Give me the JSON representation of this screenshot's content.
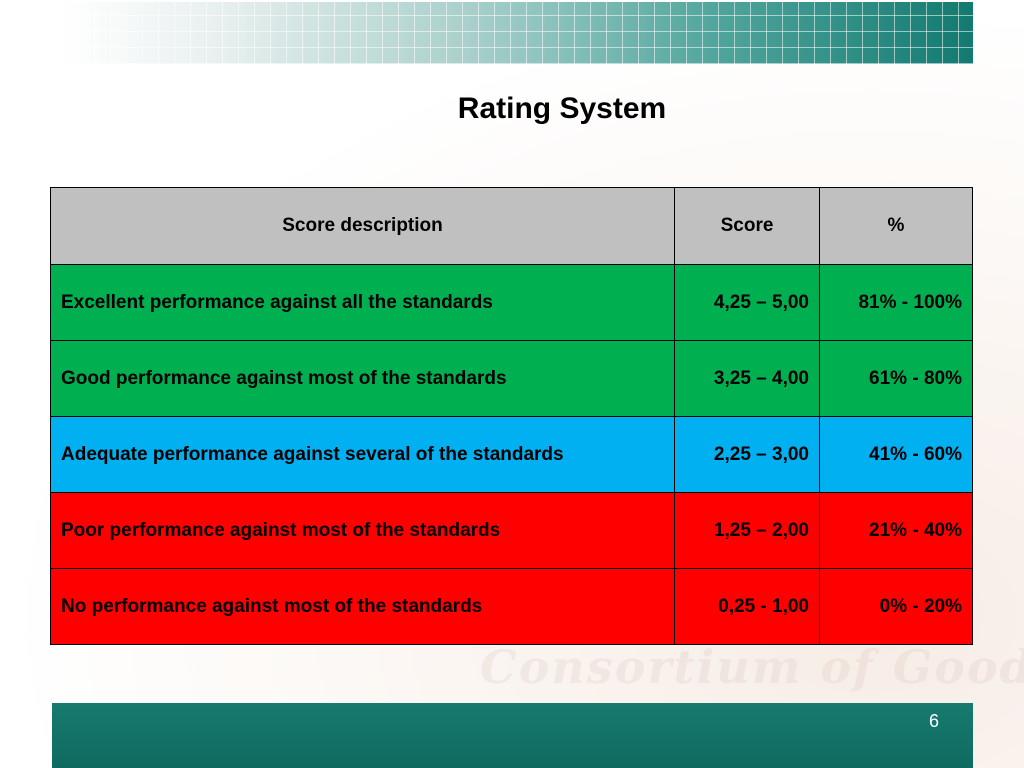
{
  "slide": {
    "title": "Rating System",
    "page_number": "6",
    "watermark": "Consortium of Good Governance"
  },
  "table": {
    "headers": [
      "Score description",
      "Score",
      "%"
    ],
    "header_color": "#c0c0c0",
    "rows": [
      {
        "description": "Excellent performance against all the standards",
        "score": "4,25 – 5,00",
        "percent": "81% - 100%",
        "color": "#00b050"
      },
      {
        "description": "Good performance against most of the standards",
        "score": "3,25 – 4,00",
        "percent": "61% - 80%",
        "color": "#00b050"
      },
      {
        "description": "Adequate performance against several of the standards",
        "score": "2,25 – 3,00",
        "percent": "41% - 60%",
        "color": "#00b0f0"
      },
      {
        "description": "Poor performance against most of the standards",
        "score": "1,25 – 2,00",
        "percent": "21% - 40%",
        "color": "#ff0000"
      },
      {
        "description": "No performance against most of the standards",
        "score": "0,25 - 1,00",
        "percent": "0% - 20%",
        "color": "#ff0000"
      }
    ]
  },
  "theme": {
    "banner_color": "#127a70",
    "footer_color": "#177b6f"
  }
}
